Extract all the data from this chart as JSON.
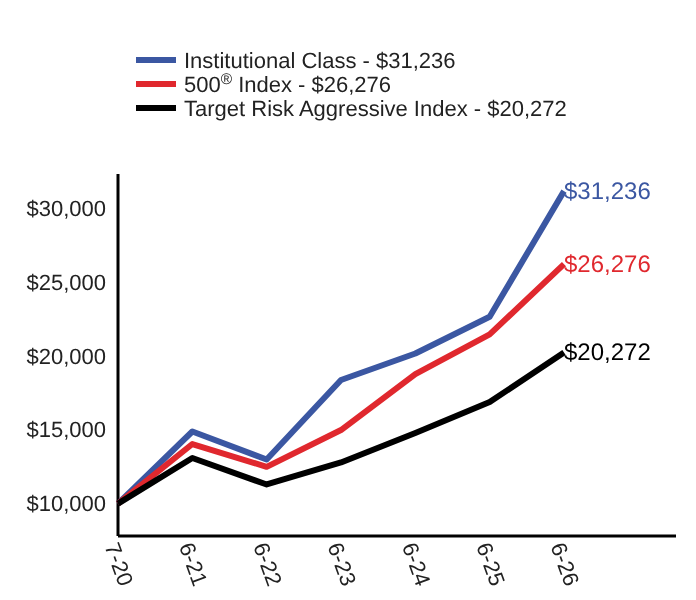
{
  "chart_data": {
    "type": "line",
    "categories": [
      "7-20",
      "6-21",
      "6-22",
      "6-23",
      "6-24",
      "6-25",
      "6-26"
    ],
    "series": [
      {
        "name": "Institutional Class - $31,236",
        "color": "#3b57a2",
        "values": [
          10000,
          14900,
          13000,
          18400,
          20200,
          22700,
          31236
        ],
        "value_labels": [
          null,
          null,
          null,
          null,
          null,
          null,
          "$31,236"
        ]
      },
      {
        "name": "500$^{®}$ Index - $26,276",
        "color": "#e0282e",
        "values": [
          10000,
          14050,
          12500,
          15000,
          18800,
          21500,
          26276
        ],
        "value_labels": [
          null,
          null,
          null,
          null,
          null,
          null,
          "$26,276"
        ]
      },
      {
        "name": "Target Risk Aggressive Index - $20,272",
        "color": "#000000",
        "values": [
          10000,
          13100,
          11300,
          12800,
          14800,
          16900,
          20272
        ],
        "value_labels": [
          null,
          null,
          null,
          null,
          null,
          null,
          "$20,272"
        ]
      }
    ],
    "ylim": [
      7800,
      32400
    ],
    "yticks": [
      {
        "value": 10000,
        "label": "$10,000"
      },
      {
        "value": 15000,
        "label": "$15,000"
      },
      {
        "value": 20000,
        "label": "$20,000"
      },
      {
        "value": 25000,
        "label": "$25,000"
      },
      {
        "value": 30000,
        "label": "$30,000"
      }
    ],
    "grid": false,
    "legend": "top",
    "marker": "none",
    "line_style": "solid"
  }
}
